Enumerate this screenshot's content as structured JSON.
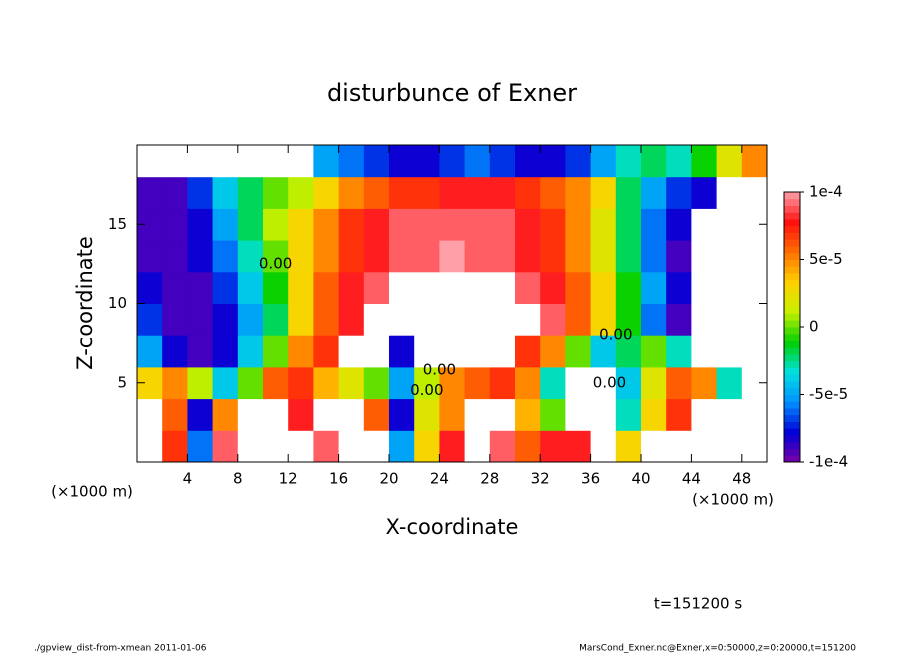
{
  "chart_data": {
    "type": "contour",
    "title": "disturbunce of Exner",
    "xlabel": "X-coordinate",
    "ylabel": "Z-coordinate",
    "xunit_left": "(×1000 m)",
    "xunit_right": "(×1000 m)",
    "time_label": "t=151200 s",
    "footer_left": "./gpview_dist-from-xmean  2011-01-06",
    "footer_right": "MarsCond_Exner.nc@Exner,x=0:50000,z=0:20000,t=151200",
    "xlim": [
      0,
      50
    ],
    "ylim": [
      0,
      20
    ],
    "xticks": [
      4,
      8,
      12,
      16,
      20,
      24,
      28,
      32,
      36,
      40,
      44,
      48
    ],
    "yticks": [
      5,
      10,
      15
    ],
    "x": [
      1,
      3,
      5,
      7,
      9,
      11,
      13,
      15,
      17,
      19,
      21,
      23,
      25,
      27,
      29,
      31,
      33,
      35,
      37,
      39,
      41,
      43,
      45,
      47,
      49
    ],
    "y": [
      1,
      3,
      5,
      7,
      9,
      11,
      13,
      15,
      17,
      19
    ],
    "z": [
      [
        0.00015,
        7e-05,
        -6e-05,
        9e-05,
        0.00015,
        0.00015,
        0.00015,
        9e-05,
        0.00015,
        0.00015,
        -5e-05,
        3e-05,
        8e-05,
        0.00015,
        9e-05,
        6e-05,
        8e-05,
        8e-05,
        0.00015,
        3e-05,
        0.00015,
        0.00015,
        0.00015,
        0.00015,
        0.00015
      ],
      [
        0.00015,
        6e-05,
        -8e-05,
        5e-05,
        0.00015,
        0.00015,
        8e-05,
        0.00015,
        0.00015,
        6e-05,
        -8e-05,
        2e-05,
        5e-05,
        0.00015,
        0.00015,
        4e-05,
        0,
        0.00015,
        0.00015,
        -3e-05,
        3e-05,
        7e-05,
        0.00015,
        0.00015,
        0.00015
      ],
      [
        3e-05,
        5e-05,
        1e-05,
        -4e-05,
        0,
        6e-05,
        7e-05,
        4e-05,
        2e-05,
        0,
        -5e-05,
        1e-05,
        5e-05,
        6e-05,
        7e-05,
        5e-05,
        -3e-05,
        0.00015,
        0.00015,
        -4e-05,
        2e-05,
        6e-05,
        5e-05,
        -3e-05,
        0.00015
      ],
      [
        -5e-05,
        -8e-05,
        -9e-05,
        -8e-05,
        -4e-05,
        0,
        5e-05,
        7e-05,
        0.00015,
        0.00015,
        -8e-05,
        0.00015,
        0.00015,
        0.00015,
        0.00015,
        7e-05,
        5e-05,
        0,
        -4e-05,
        -2e-05,
        0,
        -3e-05,
        0.00015,
        0.00015,
        0.00015
      ],
      [
        -7e-05,
        -9e-05,
        -9e-05,
        -8e-05,
        -5e-05,
        -2e-05,
        3e-05,
        6e-05,
        8e-05,
        0.00015,
        0.00015,
        0.00015,
        0.00015,
        0.00015,
        0.00015,
        0.00015,
        9e-05,
        6e-05,
        3e-05,
        -1e-05,
        -6e-05,
        -9e-05,
        0.00015,
        0.00015,
        0.00015
      ],
      [
        -8e-05,
        -9e-05,
        -9e-05,
        -7e-05,
        -4e-05,
        -1e-05,
        3e-05,
        6e-05,
        8e-05,
        9e-05,
        0.00015,
        0.00015,
        0.00015,
        0.00015,
        0.00015,
        9e-05,
        8e-05,
        6e-05,
        3e-05,
        -1e-05,
        -5e-05,
        -8e-05,
        0.00015,
        0.00015,
        0.00015
      ],
      [
        -9e-05,
        -9e-05,
        -8e-05,
        -6e-05,
        -3e-05,
        0,
        3e-05,
        5e-05,
        7e-05,
        8e-05,
        9e-05,
        9e-05,
        0.0001,
        9e-05,
        9e-05,
        8e-05,
        7e-05,
        5e-05,
        2e-05,
        -2e-05,
        -6e-05,
        -9e-05,
        0.00015,
        0.00015,
        0.00015
      ],
      [
        -9e-05,
        -9e-05,
        -8e-05,
        -5e-05,
        -2e-05,
        1e-05,
        3e-05,
        5e-05,
        7e-05,
        8e-05,
        9e-05,
        9e-05,
        9e-05,
        9e-05,
        9e-05,
        8e-05,
        7e-05,
        5e-05,
        2e-05,
        -2e-05,
        -6e-05,
        -8e-05,
        0.00015,
        0.00015,
        0.00015
      ],
      [
        -9e-05,
        -9e-05,
        -7e-05,
        -4e-05,
        -2e-05,
        0,
        1e-05,
        3e-05,
        5e-05,
        6e-05,
        7e-05,
        7e-05,
        8e-05,
        8e-05,
        8e-05,
        7e-05,
        6e-05,
        5e-05,
        3e-05,
        -2e-05,
        -5e-05,
        -7e-05,
        -8e-05,
        0.00015,
        0.00015
      ],
      [
        0.00015,
        0.00015,
        0.00015,
        0.00015,
        0.00015,
        0.00015,
        0.00015,
        -5e-05,
        -6e-05,
        -7e-05,
        -8e-05,
        -8e-05,
        -7e-05,
        -6e-05,
        -7e-05,
        -8e-05,
        -8e-05,
        -7e-05,
        -5e-05,
        -3e-05,
        -2e-05,
        -3e-05,
        -1e-05,
        2e-05,
        5e-05
      ]
    ],
    "clim": [
      -0.0001,
      0.0001
    ],
    "cticks": [
      {
        "value": 0.0001,
        "label": "1e-4"
      },
      {
        "value": 5e-05,
        "label": "5e-5"
      },
      0,
      {
        "value": -5e-05,
        "label": "-5e-5"
      },
      {
        "value": -0.0001,
        "label": "-1e-4"
      }
    ],
    "colorscale": [
      "#7a00a8",
      "#0000d8",
      "#0090ff",
      "#00e0e0",
      "#00d000",
      "#c8f000",
      "#ffd000",
      "#ff7000",
      "#ff1010",
      "#ffa0a8"
    ],
    "annotations": [
      {
        "text": "0.00",
        "x": 11,
        "y": 12.5
      },
      {
        "text": "0.00",
        "x": 24,
        "y": 5.8
      },
      {
        "text": "0.00",
        "x": 23,
        "y": 4.5
      },
      {
        "text": "0.00",
        "x": 38,
        "y": 8
      },
      {
        "text": "0.00",
        "x": 37.5,
        "y": 5
      }
    ]
  }
}
